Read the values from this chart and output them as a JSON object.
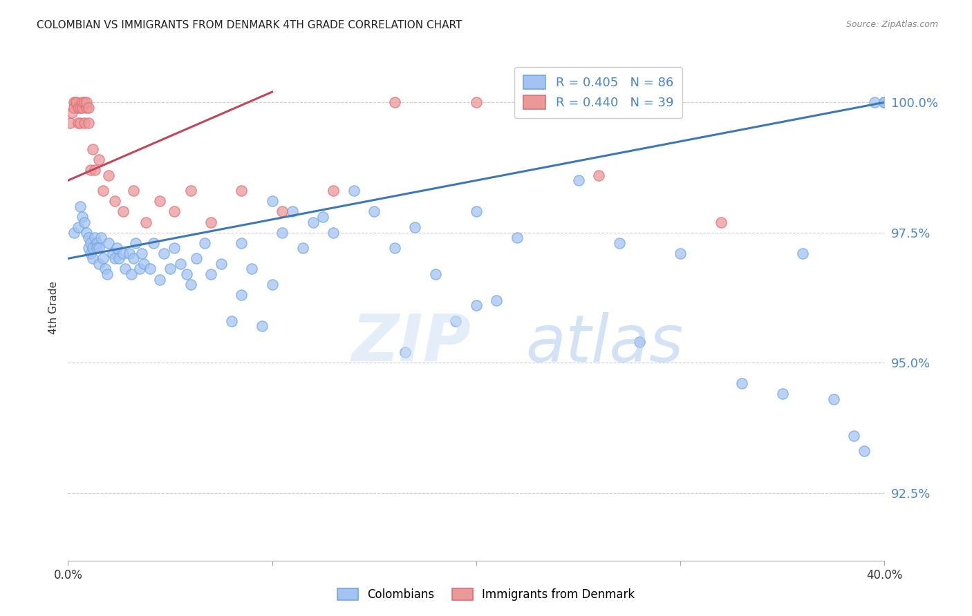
{
  "title": "COLOMBIAN VS IMMIGRANTS FROM DENMARK 4TH GRADE CORRELATION CHART",
  "source": "Source: ZipAtlas.com",
  "ylabel": "4th Grade",
  "yticks": [
    92.5,
    95.0,
    97.5,
    100.0
  ],
  "ytick_labels": [
    "92.5%",
    "95.0%",
    "97.5%",
    "100.0%"
  ],
  "xmin": 0.0,
  "xmax": 40.0,
  "ymin": 91.2,
  "ymax": 100.9,
  "blue_R": 0.405,
  "blue_N": 86,
  "pink_R": 0.44,
  "pink_N": 39,
  "blue_color": "#a4c2f4",
  "pink_color": "#ea9999",
  "blue_edge_color": "#6fa8dc",
  "pink_edge_color": "#e06c75",
  "blue_line_color": "#3d78b5",
  "pink_line_color": "#c0465a",
  "legend_blue_label": "Colombians",
  "legend_pink_label": "Immigrants from Denmark",
  "blue_line_x0": 0.0,
  "blue_line_y0": 97.0,
  "blue_line_x1": 40.0,
  "blue_line_y1": 100.0,
  "pink_line_x0": 0.0,
  "pink_line_y0": 98.5,
  "pink_line_x1": 10.0,
  "pink_line_y1": 100.2,
  "blue_x": [
    0.3,
    0.5,
    0.6,
    0.7,
    0.8,
    0.9,
    1.0,
    1.0,
    1.1,
    1.1,
    1.2,
    1.2,
    1.3,
    1.4,
    1.4,
    1.5,
    1.5,
    1.6,
    1.7,
    1.8,
    1.9,
    2.0,
    2.2,
    2.3,
    2.4,
    2.5,
    2.7,
    2.8,
    3.0,
    3.1,
    3.2,
    3.3,
    3.5,
    3.6,
    3.7,
    4.0,
    4.2,
    4.5,
    4.7,
    5.0,
    5.2,
    5.5,
    5.8,
    6.0,
    6.3,
    6.7,
    7.0,
    7.5,
    8.0,
    8.5,
    9.0,
    9.5,
    10.0,
    10.5,
    11.0,
    11.5,
    12.0,
    13.0,
    14.0,
    15.0,
    16.0,
    17.0,
    18.0,
    19.0,
    20.0,
    21.0,
    22.0,
    25.0,
    27.0,
    30.0,
    33.0,
    35.0,
    36.0,
    37.5,
    38.5,
    39.0,
    39.5,
    40.0,
    40.0,
    40.0,
    8.5,
    10.0,
    12.5,
    16.5,
    20.0,
    28.0
  ],
  "blue_y": [
    97.5,
    97.6,
    98.0,
    97.8,
    97.7,
    97.5,
    97.4,
    97.2,
    97.1,
    97.3,
    97.2,
    97.0,
    97.4,
    97.3,
    97.2,
    96.9,
    97.2,
    97.4,
    97.0,
    96.8,
    96.7,
    97.3,
    97.1,
    97.0,
    97.2,
    97.0,
    97.1,
    96.8,
    97.1,
    96.7,
    97.0,
    97.3,
    96.8,
    97.1,
    96.9,
    96.8,
    97.3,
    96.6,
    97.1,
    96.8,
    97.2,
    96.9,
    96.7,
    96.5,
    97.0,
    97.3,
    96.7,
    96.9,
    95.8,
    96.3,
    96.8,
    95.7,
    96.5,
    97.5,
    97.9,
    97.2,
    97.7,
    97.5,
    98.3,
    97.9,
    97.2,
    97.6,
    96.7,
    95.8,
    97.9,
    96.2,
    97.4,
    98.5,
    97.3,
    97.1,
    94.6,
    94.4,
    97.1,
    94.3,
    93.6,
    93.3,
    100.0,
    100.0,
    100.0,
    100.0,
    97.3,
    98.1,
    97.8,
    95.2,
    96.1,
    95.4
  ],
  "pink_x": [
    0.1,
    0.2,
    0.3,
    0.3,
    0.4,
    0.4,
    0.5,
    0.5,
    0.6,
    0.6,
    0.7,
    0.7,
    0.8,
    0.8,
    0.9,
    0.9,
    1.0,
    1.0,
    1.1,
    1.2,
    1.3,
    1.5,
    1.7,
    2.0,
    2.3,
    2.7,
    3.2,
    3.8,
    4.5,
    5.2,
    6.0,
    7.0,
    8.5,
    10.5,
    13.0,
    16.0,
    20.0,
    26.0,
    32.0
  ],
  "pink_y": [
    99.6,
    99.8,
    100.0,
    99.9,
    100.0,
    100.0,
    99.9,
    99.6,
    99.9,
    99.6,
    99.9,
    100.0,
    99.6,
    100.0,
    99.9,
    100.0,
    99.6,
    99.9,
    98.7,
    99.1,
    98.7,
    98.9,
    98.3,
    98.6,
    98.1,
    97.9,
    98.3,
    97.7,
    98.1,
    97.9,
    98.3,
    97.7,
    98.3,
    97.9,
    98.3,
    100.0,
    100.0,
    98.6,
    97.7
  ]
}
